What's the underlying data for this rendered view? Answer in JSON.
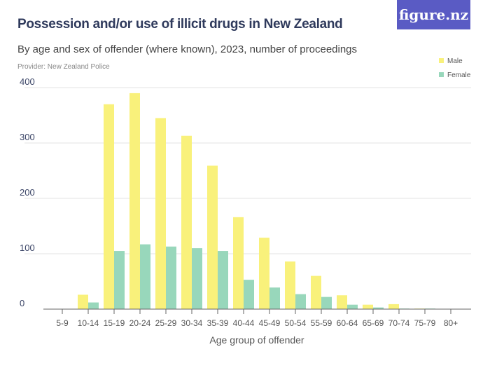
{
  "title": "Possession and/or use of illicit drugs in New Zealand",
  "subtitle": "By age and sex of offender (where known), 2023, number of proceedings",
  "provider": "Provider: New Zealand Police",
  "logo": "figure.nz",
  "colors": {
    "male": "#f9f17b",
    "female": "#98d7bb",
    "title": "#2f3a5c",
    "logo_bg": "#5a5bc4"
  },
  "chart_data": {
    "type": "bar",
    "xlabel": "Age group of offender",
    "ylabel": "",
    "ylim": [
      0,
      400
    ],
    "yticks": [
      0,
      100,
      200,
      300,
      400
    ],
    "grid": true,
    "legend_position": "top-right",
    "categories": [
      "5-9",
      "10-14",
      "15-19",
      "20-24",
      "25-29",
      "30-34",
      "35-39",
      "40-44",
      "45-49",
      "50-54",
      "55-59",
      "60-64",
      "65-69",
      "70-74",
      "75-79",
      "80+"
    ],
    "series": [
      {
        "name": "Male",
        "values": [
          0,
          26,
          370,
          390,
          345,
          313,
          259,
          166,
          129,
          86,
          60,
          25,
          8,
          9,
          1,
          0
        ]
      },
      {
        "name": "Female",
        "values": [
          0,
          12,
          105,
          117,
          113,
          110,
          105,
          53,
          39,
          27,
          22,
          8,
          3,
          1,
          1,
          0
        ]
      }
    ]
  }
}
